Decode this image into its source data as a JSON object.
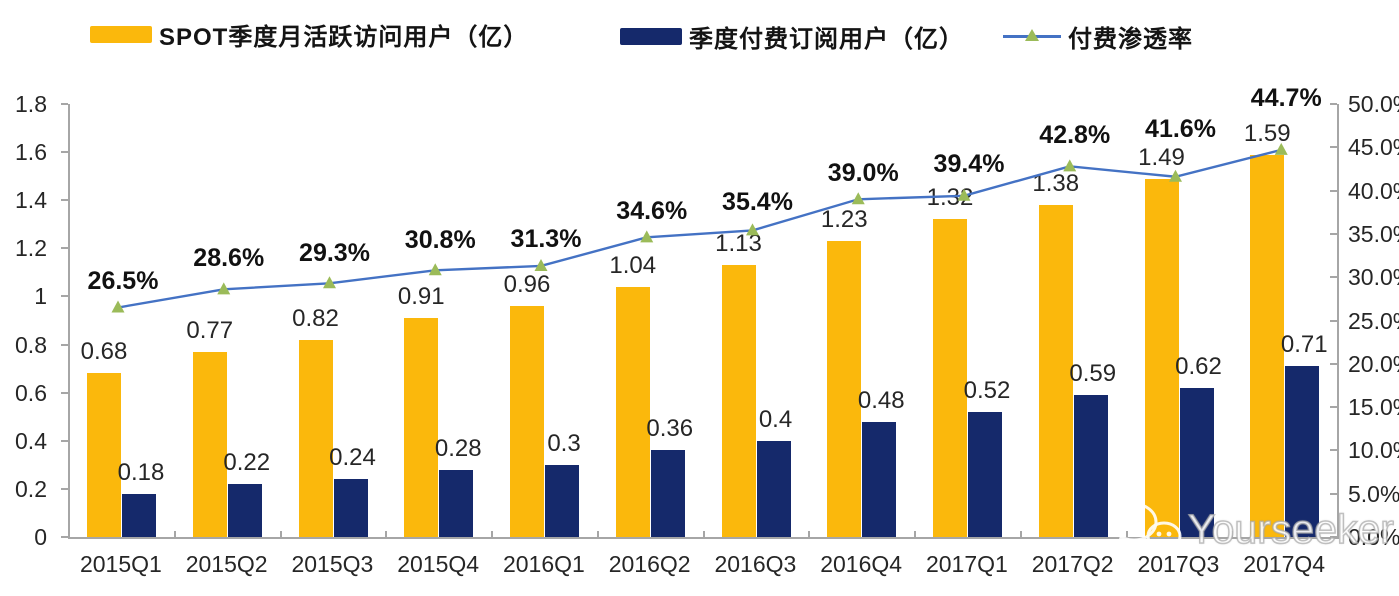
{
  "legend": {
    "items": [
      {
        "label": "SPOT季度月活跃访问用户（亿）",
        "swatch": "bar",
        "color": "#FBB80C"
      },
      {
        "label": "季度付费订阅用户（亿）",
        "swatch": "bar",
        "color": "#15296B"
      },
      {
        "label": "付费渗透率",
        "swatch": "line-marker",
        "line_color": "#4472C4",
        "marker_color": "#9BBB59"
      }
    ]
  },
  "watermark": {
    "text": "Yourseeker",
    "icon": "wechat-icon"
  },
  "chart_data": {
    "type": "bar+line",
    "title": "",
    "categories": [
      "2015Q1",
      "2015Q2",
      "2015Q3",
      "2015Q4",
      "2016Q1",
      "2016Q2",
      "2016Q3",
      "2016Q4",
      "2017Q1",
      "2017Q2",
      "2017Q3",
      "2017Q4"
    ],
    "series": [
      {
        "name": "SPOT季度月活跃访问用户（亿）",
        "type": "bar",
        "axis": "left",
        "color": "#FBB80C",
        "values": [
          0.68,
          0.77,
          0.82,
          0.91,
          0.96,
          1.04,
          1.13,
          1.23,
          1.32,
          1.38,
          1.49,
          1.59
        ],
        "labels": [
          "0.68",
          "0.77",
          "0.82",
          "0.91",
          "0.96",
          "1.04",
          "1.13",
          "1.23",
          "1.32",
          "1.38",
          "1.49",
          "1.59"
        ]
      },
      {
        "name": "季度付费订阅用户（亿）",
        "type": "bar",
        "axis": "left",
        "color": "#15296B",
        "values": [
          0.18,
          0.22,
          0.24,
          0.28,
          0.3,
          0.36,
          0.4,
          0.48,
          0.52,
          0.59,
          0.62,
          0.71
        ],
        "labels": [
          "0.18",
          "0.22",
          "0.24",
          "0.28",
          "0.3",
          "0.36",
          "0.4",
          "0.48",
          "0.52",
          "0.59",
          "0.62",
          "0.71"
        ]
      },
      {
        "name": "付费渗透率",
        "type": "line",
        "axis": "right",
        "color": "#4472C4",
        "marker": "triangle",
        "marker_color": "#9BBB59",
        "values": [
          26.5,
          28.6,
          29.3,
          30.8,
          31.3,
          34.6,
          35.4,
          39.0,
          39.4,
          42.8,
          41.6,
          44.7
        ],
        "labels": [
          "26.5%",
          "28.6%",
          "29.3%",
          "30.8%",
          "31.3%",
          "34.6%",
          "35.4%",
          "39.0%",
          "39.4%",
          "42.8%",
          "41.6%",
          "44.7%"
        ]
      }
    ],
    "left_axis": {
      "min": 0,
      "max": 1.8,
      "step": 0.2,
      "ticks": [
        "1.8",
        "1.6",
        "1.4",
        "1.2",
        "1",
        "0.8",
        "0.6",
        "0.4",
        "0.2",
        "0"
      ]
    },
    "right_axis": {
      "min": 0,
      "max": 50,
      "step": 5,
      "ticks": [
        "50.0%",
        "45.0%",
        "40.0%",
        "35.0%",
        "30.0%",
        "25.0%",
        "20.0%",
        "15.0%",
        "10.0%",
        "5.0%",
        "0.0%"
      ]
    },
    "grid": false,
    "legend_position": "top",
    "colors": {
      "axis": "#A6A6A6",
      "text": "#262626"
    }
  }
}
